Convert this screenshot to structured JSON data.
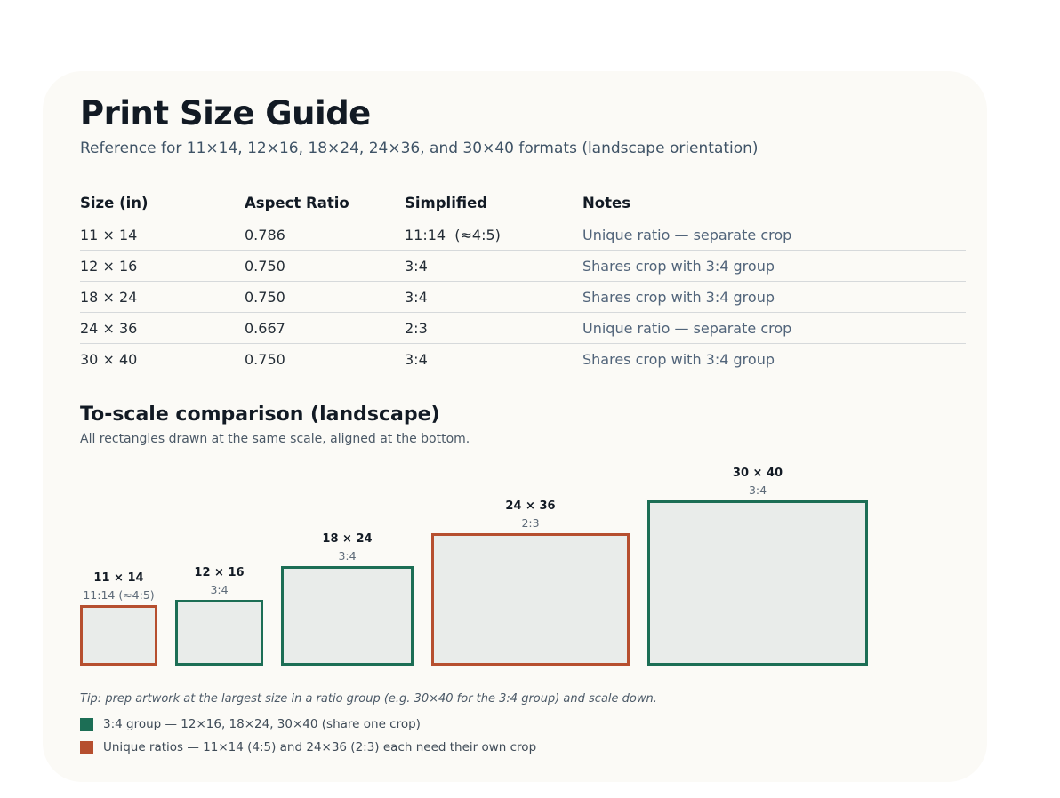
{
  "page": {
    "title": "Print Size Guide",
    "subtitle": "Reference for 11×14, 12×16, 18×24, 24×36, and 30×40 formats (landscape orientation)"
  },
  "table": {
    "headers": [
      "Size (in)",
      "Aspect Ratio",
      "Simplified",
      "Notes"
    ],
    "rows": [
      {
        "size": "11 × 14",
        "ratio": "0.786",
        "simplified": "11:14  (≈4:5)",
        "notes": "Unique ratio — separate crop"
      },
      {
        "size": "12 × 16",
        "ratio": "0.750",
        "simplified": "3:4",
        "notes": "Shares crop with 3:4 group"
      },
      {
        "size": "18 × 24",
        "ratio": "0.750",
        "simplified": "3:4",
        "notes": "Shares crop with 3:4 group"
      },
      {
        "size": "24 × 36",
        "ratio": "0.667",
        "simplified": "2:3",
        "notes": "Unique ratio — separate crop"
      },
      {
        "size": "30 × 40",
        "ratio": "0.750",
        "simplified": "3:4",
        "notes": "Shares crop with 3:4 group"
      }
    ]
  },
  "comparison": {
    "title": "To-scale comparison (landscape)",
    "subtitle": "All rectangles drawn at the same scale, aligned at the bottom.",
    "items": [
      {
        "label": "11 × 14",
        "ratio_label": "11:14 (≈4:5)",
        "short_in": 11,
        "long_in": 14,
        "group": "unique"
      },
      {
        "label": "12 × 16",
        "ratio_label": "3:4",
        "short_in": 12,
        "long_in": 16,
        "group": "3:4"
      },
      {
        "label": "18 × 24",
        "ratio_label": "3:4",
        "short_in": 18,
        "long_in": 24,
        "group": "3:4"
      },
      {
        "label": "24 × 36",
        "ratio_label": "2:3",
        "short_in": 24,
        "long_in": 36,
        "group": "unique"
      },
      {
        "label": "30 × 40",
        "ratio_label": "3:4",
        "short_in": 30,
        "long_in": 40,
        "group": "3:4"
      }
    ]
  },
  "tip": "Tip: prep artwork at the largest size in a ratio group (e.g. 30×40 for the 3:4 group) and scale down.",
  "legend": [
    {
      "text": "3:4 group — 12×16, 18×24, 30×40 (share one crop)",
      "color": "#1c6e55"
    },
    {
      "text": "Unique ratios — 11×14 (4:5) and 24×36 (2:3) each need their own crop",
      "color": "#b64f2f"
    }
  ],
  "colors": {
    "group_3_4": "#1c6e55",
    "unique": "#b64f2f"
  }
}
